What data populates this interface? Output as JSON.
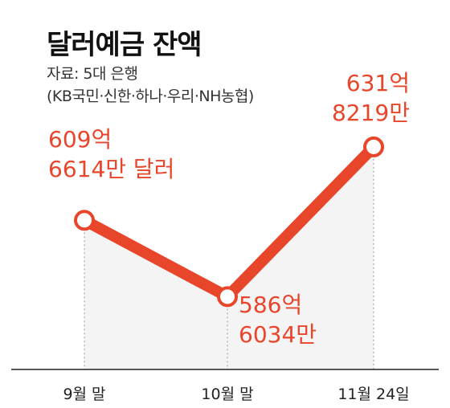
{
  "title": "달러예금 잔액",
  "source_line1": "자료: 5대 은행",
  "source_line2": "(KB국민·신한·하나·우리·NH농협)",
  "chart_data": {
    "type": "line",
    "title": "달러예금 잔액",
    "categories": [
      "9월 말",
      "10월 말",
      "11월 24일"
    ],
    "series": [
      {
        "values": [
          609.6614,
          586.6034,
          631.8219
        ]
      }
    ],
    "data_labels": [
      [
        "609억",
        "6614만 달러"
      ],
      [
        "586억",
        "6034만"
      ],
      [
        "631억",
        "8219만"
      ]
    ],
    "ylim": [
      560,
      650
    ],
    "line_color": "#e8462b",
    "label_color": "#e8462b",
    "fill_color": "#f4f4f4",
    "grid": false
  }
}
